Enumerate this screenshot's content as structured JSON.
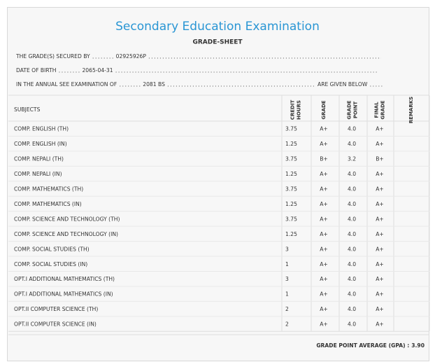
{
  "header": {
    "title": "Secondary Education Examination",
    "subtitle": "GRADE-SHEET"
  },
  "info": [
    {
      "label": "THE GRADE(S) SECURED BY",
      "value": "02925926P"
    },
    {
      "label": "DATE OF BIRTH",
      "value": "2065-04-31"
    },
    {
      "label": "IN THE ANNUAL SEE EXAMINATION OF",
      "value": "2081 BS",
      "suffix": "ARE GIVEN BELOW"
    }
  ],
  "table": {
    "columns": [
      [
        "SUBJECTS"
      ],
      [
        "CREDIT",
        "HOURS"
      ],
      [
        "GRADE"
      ],
      [
        "GRADE",
        "POINT"
      ],
      [
        "FINAL",
        "GRADE"
      ],
      [
        "REMARKS"
      ]
    ],
    "rows": [
      [
        "COMP. ENGLISH (TH)",
        "3.75",
        "A+",
        "4.0",
        "A+"
      ],
      [
        "COMP. ENGLISH (IN)",
        "1.25",
        "A+",
        "4.0",
        "A+"
      ],
      [
        "COMP. NEPALI (TH)",
        "3.75",
        "B+",
        "3.2",
        "B+"
      ],
      [
        "COMP. NEPALI (IN)",
        "1.25",
        "A+",
        "4.0",
        "A+"
      ],
      [
        "COMP. MATHEMATICS (TH)",
        "3.75",
        "A+",
        "4.0",
        "A+"
      ],
      [
        "COMP. MATHEMATICS (IN)",
        "1.25",
        "A+",
        "4.0",
        "A+"
      ],
      [
        "COMP. SCIENCE AND TECHNOLOGY (TH)",
        "3.75",
        "A+",
        "4.0",
        "A+"
      ],
      [
        "COMP. SCIENCE AND TECHNOLOGY (IN)",
        "1.25",
        "A+",
        "4.0",
        "A+"
      ],
      [
        "COMP. SOCIAL STUDIES (TH)",
        "3",
        "A+",
        "4.0",
        "A+"
      ],
      [
        "COMP. SOCIAL STUDIES (IN)",
        "1",
        "A+",
        "4.0",
        "A+"
      ],
      [
        "OPT.I ADDITIONAL MATHEMATICS (TH)",
        "3",
        "A+",
        "4.0",
        "A+"
      ],
      [
        "OPT.I ADDITIONAL MATHEMATICS (IN)",
        "1",
        "A+",
        "4.0",
        "A+"
      ],
      [
        "OPT.II COMPUTER SCIENCE (TH)",
        "2",
        "A+",
        "4.0",
        "A+"
      ],
      [
        "OPT.II COMPUTER SCIENCE (IN)",
        "2",
        "A+",
        "4.0",
        "A+"
      ]
    ]
  },
  "footer": {
    "label": "GRADE POINT AVERAGE (GPA) :",
    "value": "3.90"
  }
}
